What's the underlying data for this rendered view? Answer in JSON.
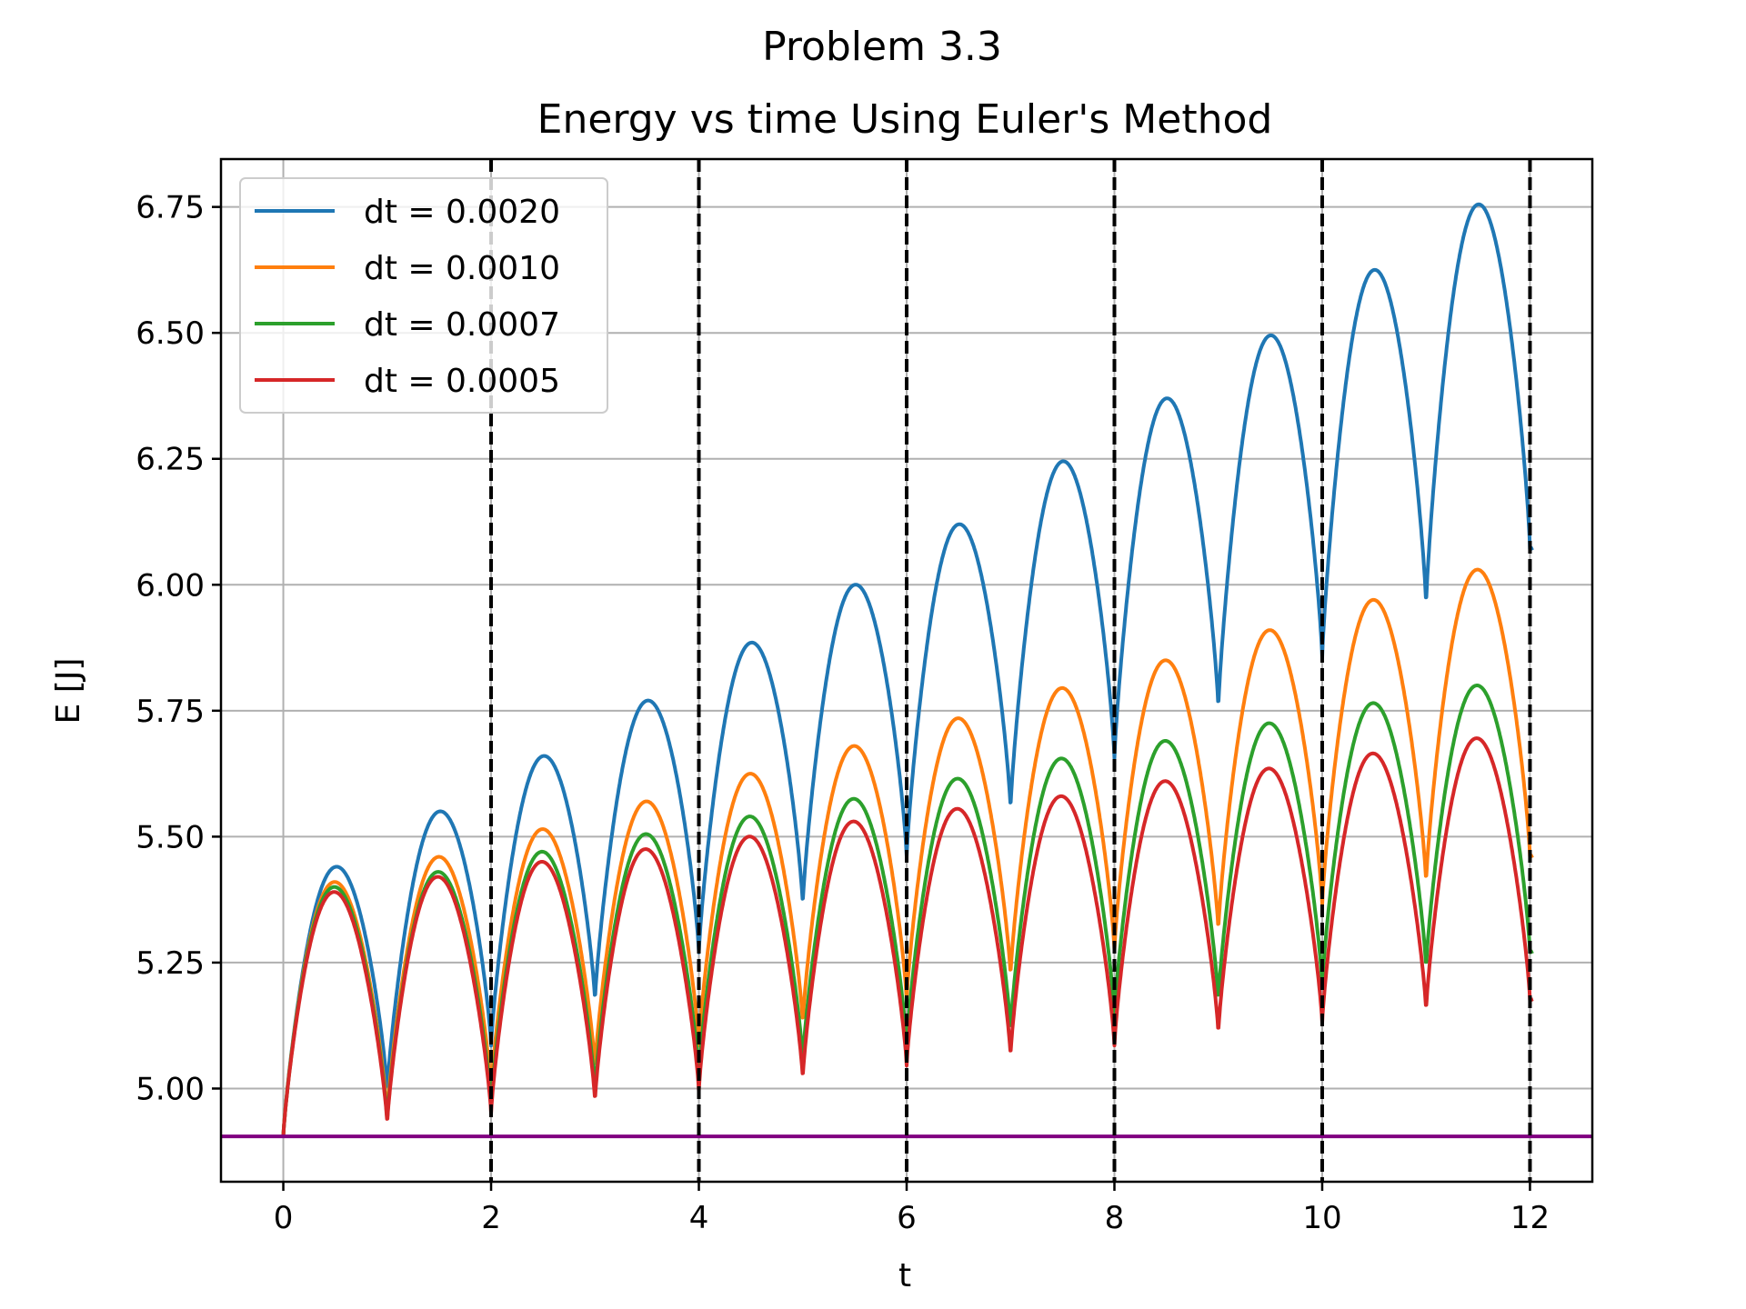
{
  "chart_data": {
    "type": "line",
    "suptitle": "Problem 3.3",
    "title": "Energy vs time Using Euler's Method",
    "xlabel": "t",
    "ylabel": "E [J]",
    "xlim": [
      -0.6,
      12.6
    ],
    "ylim": [
      4.815,
      6.845
    ],
    "xticks": [
      0,
      2,
      4,
      6,
      8,
      10,
      12
    ],
    "xtick_labels": [
      "0",
      "2",
      "4",
      "6",
      "8",
      "10",
      "12"
    ],
    "yticks": [
      5.0,
      5.25,
      5.5,
      5.75,
      6.0,
      6.25,
      6.5,
      6.75
    ],
    "ytick_labels": [
      "5.00",
      "5.25",
      "5.50",
      "5.75",
      "6.00",
      "6.25",
      "6.50",
      "6.75"
    ],
    "grid": true,
    "legend_location": "upper-left",
    "vertical_lines": {
      "x": [
        2,
        4,
        6,
        8,
        10,
        12
      ],
      "style": "dashed",
      "color": "#000000"
    },
    "horizontal_line": {
      "y": 4.905,
      "color": "#800080"
    },
    "x_end": 12.03,
    "series": [
      {
        "name": "dt = 0.0020",
        "color": "#1f77b4",
        "e0": 4.905,
        "peaks": [
          5.44,
          5.55,
          5.66,
          5.77,
          5.885,
          6.0,
          6.12,
          6.245,
          6.37,
          6.495,
          6.625,
          6.755
        ],
        "troughs": [
          4.995,
          5.085,
          5.175,
          5.27,
          5.365,
          5.46,
          5.555,
          5.655,
          5.755,
          5.855,
          5.96
        ],
        "end_value": 6.07
      },
      {
        "name": "dt = 0.0010",
        "color": "#ff7f0e",
        "e0": 4.905,
        "peaks": [
          5.41,
          5.46,
          5.515,
          5.57,
          5.625,
          5.68,
          5.735,
          5.795,
          5.85,
          5.91,
          5.97,
          6.03
        ],
        "troughs": [
          4.945,
          4.995,
          5.04,
          5.085,
          5.13,
          5.175,
          5.225,
          5.275,
          5.315,
          5.365,
          5.41
        ],
        "end_value": 5.46
      },
      {
        "name": "dt = 0.0007",
        "color": "#2ca02c",
        "e0": 4.905,
        "peaks": [
          5.4,
          5.43,
          5.47,
          5.505,
          5.54,
          5.575,
          5.615,
          5.655,
          5.69,
          5.725,
          5.765,
          5.8
        ],
        "troughs": [
          4.935,
          4.965,
          4.995,
          5.025,
          5.055,
          5.085,
          5.115,
          5.145,
          5.175,
          5.205,
          5.24
        ],
        "end_value": 5.27
      },
      {
        "name": "dt = 0.0005",
        "color": "#d62728",
        "e0": 4.905,
        "peaks": [
          5.39,
          5.42,
          5.45,
          5.475,
          5.5,
          5.53,
          5.555,
          5.58,
          5.61,
          5.635,
          5.665,
          5.695
        ],
        "troughs": [
          4.93,
          4.95,
          4.975,
          4.995,
          5.02,
          5.045,
          5.065,
          5.085,
          5.11,
          5.13,
          5.155
        ],
        "end_value": 5.175
      }
    ]
  }
}
